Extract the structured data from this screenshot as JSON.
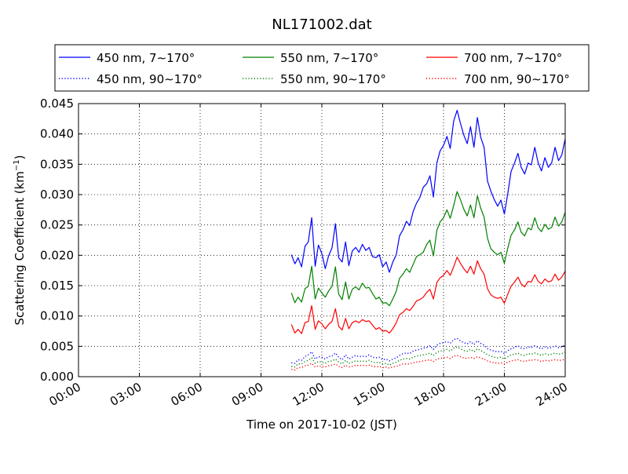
{
  "chart_data": {
    "type": "line",
    "title": "NL171002.dat",
    "xlabel": "Time on 2017-10-02 (JST)",
    "ylabel_main": "Scattering Coefficient (km",
    "ylabel_sup": "−1",
    "ylabel_close": ")",
    "xlim": [
      0,
      24
    ],
    "ylim": [
      0,
      0.045
    ],
    "grid": true,
    "legend_position": "top",
    "x_ticks": [
      {
        "value": 0,
        "label": "00:00"
      },
      {
        "value": 3,
        "label": "03:00"
      },
      {
        "value": 6,
        "label": "06:00"
      },
      {
        "value": 9,
        "label": "09:00"
      },
      {
        "value": 12,
        "label": "12:00"
      },
      {
        "value": 15,
        "label": "15:00"
      },
      {
        "value": 18,
        "label": "18:00"
      },
      {
        "value": 21,
        "label": "21:00"
      },
      {
        "value": 24,
        "label": "24:00"
      }
    ],
    "y_ticks": [
      {
        "value": 0,
        "label": "0.000"
      },
      {
        "value": 0.005,
        "label": "0.005"
      },
      {
        "value": 0.01,
        "label": "0.010"
      },
      {
        "value": 0.015,
        "label": "0.015"
      },
      {
        "value": 0.02,
        "label": "0.020"
      },
      {
        "value": 0.025,
        "label": "0.025"
      },
      {
        "value": 0.03,
        "label": "0.030"
      },
      {
        "value": 0.035,
        "label": "0.035"
      },
      {
        "value": 0.04,
        "label": "0.040"
      },
      {
        "value": 0.045,
        "label": "0.045"
      }
    ],
    "x": [
      10.5,
      10.67,
      10.83,
      11.0,
      11.17,
      11.33,
      11.5,
      11.67,
      11.83,
      12.0,
      12.17,
      12.33,
      12.5,
      12.67,
      12.83,
      13.0,
      13.17,
      13.33,
      13.5,
      13.67,
      13.83,
      14.0,
      14.17,
      14.33,
      14.5,
      14.67,
      14.83,
      15.0,
      15.17,
      15.33,
      15.5,
      15.67,
      15.83,
      16.0,
      16.17,
      16.33,
      16.5,
      16.67,
      16.83,
      17.0,
      17.17,
      17.33,
      17.5,
      17.67,
      17.83,
      18.0,
      18.17,
      18.33,
      18.5,
      18.67,
      18.83,
      19.0,
      19.17,
      19.33,
      19.5,
      19.67,
      19.83,
      20.0,
      20.17,
      20.33,
      20.5,
      20.67,
      20.83,
      21.0,
      21.17,
      21.33,
      21.5,
      21.67,
      21.83,
      22.0,
      22.17,
      22.33,
      22.5,
      22.67,
      22.83,
      23.0,
      23.17,
      23.33,
      23.5,
      23.67,
      23.83,
      24.0
    ],
    "series": [
      {
        "name": "450 nm, 7∼170°",
        "color": "#0000ff",
        "style": "solid",
        "values": [
          0.0201,
          0.0186,
          0.0196,
          0.0181,
          0.0215,
          0.0222,
          0.0262,
          0.0182,
          0.0217,
          0.0203,
          0.0178,
          0.0199,
          0.0212,
          0.0252,
          0.0196,
          0.0189,
          0.0222,
          0.0183,
          0.0207,
          0.0213,
          0.0205,
          0.0218,
          0.0208,
          0.0213,
          0.0198,
          0.0196,
          0.0201,
          0.0181,
          0.0189,
          0.0172,
          0.0189,
          0.0201,
          0.0232,
          0.0242,
          0.0256,
          0.0249,
          0.0272,
          0.0286,
          0.0295,
          0.0312,
          0.0318,
          0.0331,
          0.0296,
          0.0352,
          0.0372,
          0.0381,
          0.0396,
          0.0376,
          0.0421,
          0.0439,
          0.0418,
          0.0398,
          0.0384,
          0.0412,
          0.0378,
          0.0427,
          0.0395,
          0.0378,
          0.0322,
          0.0306,
          0.0292,
          0.0281,
          0.0291,
          0.0268,
          0.0302,
          0.0338,
          0.0352,
          0.0368,
          0.0345,
          0.0334,
          0.0352,
          0.0349,
          0.0378,
          0.0352,
          0.0339,
          0.0361,
          0.0345,
          0.0352,
          0.0378,
          0.0356,
          0.0365,
          0.0392
        ]
      },
      {
        "name": "550 nm, 7∼170°",
        "color": "#008000",
        "style": "solid",
        "values": [
          0.0138,
          0.0122,
          0.0131,
          0.0123,
          0.0145,
          0.0149,
          0.0182,
          0.0128,
          0.0146,
          0.0138,
          0.0131,
          0.0141,
          0.0149,
          0.0181,
          0.0136,
          0.0127,
          0.0156,
          0.0128,
          0.0144,
          0.0148,
          0.0143,
          0.0154,
          0.0146,
          0.0147,
          0.0137,
          0.0128,
          0.0131,
          0.0121,
          0.0122,
          0.0117,
          0.0128,
          0.0141,
          0.0162,
          0.0169,
          0.0178,
          0.0172,
          0.0185,
          0.0198,
          0.0201,
          0.0205,
          0.0218,
          0.0225,
          0.0199,
          0.0241,
          0.0255,
          0.0262,
          0.0275,
          0.0261,
          0.0282,
          0.0305,
          0.0292,
          0.0276,
          0.0265,
          0.0283,
          0.0262,
          0.0298,
          0.0278,
          0.0263,
          0.0228,
          0.0211,
          0.0205,
          0.0201,
          0.0205,
          0.0187,
          0.0212,
          0.0233,
          0.0242,
          0.0255,
          0.0238,
          0.0232,
          0.0245,
          0.0242,
          0.0262,
          0.0245,
          0.0239,
          0.0251,
          0.0243,
          0.0246,
          0.0263,
          0.0248,
          0.0255,
          0.0271
        ]
      },
      {
        "name": "700 nm, 7∼170°",
        "color": "#ff0000",
        "style": "solid",
        "values": [
          0.0086,
          0.0072,
          0.0078,
          0.0071,
          0.0089,
          0.0091,
          0.0117,
          0.0078,
          0.0092,
          0.0087,
          0.0079,
          0.0086,
          0.0091,
          0.0112,
          0.0083,
          0.0077,
          0.0096,
          0.0079,
          0.0089,
          0.0092,
          0.0089,
          0.0094,
          0.0091,
          0.0092,
          0.0085,
          0.0078,
          0.0081,
          0.0075,
          0.0076,
          0.0072,
          0.0079,
          0.0089,
          0.0102,
          0.0106,
          0.0112,
          0.0109,
          0.0116,
          0.0125,
          0.0127,
          0.0131,
          0.0139,
          0.0144,
          0.0128,
          0.0155,
          0.0163,
          0.0167,
          0.0175,
          0.0167,
          0.0181,
          0.0197,
          0.0187,
          0.0178,
          0.0171,
          0.0182,
          0.0169,
          0.0191,
          0.0178,
          0.0169,
          0.0145,
          0.0135,
          0.0131,
          0.0129,
          0.0131,
          0.0121,
          0.0136,
          0.0149,
          0.0156,
          0.0164,
          0.0153,
          0.0148,
          0.0157,
          0.0156,
          0.0168,
          0.0157,
          0.0153,
          0.0161,
          0.0156,
          0.0158,
          0.0169,
          0.0159,
          0.0164,
          0.0174
        ]
      },
      {
        "name": "450 nm, 90∼170°",
        "color": "#0000ff",
        "style": "dotted",
        "values": [
          0.0023,
          0.0022,
          0.0028,
          0.0027,
          0.0033,
          0.0036,
          0.0041,
          0.0029,
          0.0033,
          0.0032,
          0.0029,
          0.0033,
          0.0034,
          0.0039,
          0.0032,
          0.0028,
          0.0036,
          0.0029,
          0.0032,
          0.0035,
          0.0033,
          0.0034,
          0.0033,
          0.0036,
          0.0032,
          0.0031,
          0.0032,
          0.0028,
          0.0029,
          0.0026,
          0.0029,
          0.0031,
          0.0035,
          0.0038,
          0.0039,
          0.0038,
          0.0042,
          0.0044,
          0.0045,
          0.0047,
          0.0048,
          0.0051,
          0.0045,
          0.0052,
          0.0055,
          0.0056,
          0.0058,
          0.0055,
          0.0061,
          0.0063,
          0.0059,
          0.0056,
          0.0054,
          0.0058,
          0.0053,
          0.0059,
          0.0055,
          0.0052,
          0.0046,
          0.0044,
          0.0042,
          0.0041,
          0.0042,
          0.0038,
          0.0043,
          0.0046,
          0.0048,
          0.0051,
          0.0047,
          0.0046,
          0.0049,
          0.0048,
          0.0051,
          0.0048,
          0.0046,
          0.0049,
          0.0047,
          0.0048,
          0.0051,
          0.0048,
          0.0049,
          0.0052
        ]
      },
      {
        "name": "550 nm, 90∼170°",
        "color": "#008000",
        "style": "dotted",
        "values": [
          0.0017,
          0.0016,
          0.0021,
          0.0021,
          0.0025,
          0.0027,
          0.0031,
          0.0022,
          0.0025,
          0.0024,
          0.0022,
          0.0025,
          0.0026,
          0.0029,
          0.0024,
          0.0021,
          0.0027,
          0.0022,
          0.0024,
          0.0026,
          0.0025,
          0.0026,
          0.0025,
          0.0027,
          0.0024,
          0.0023,
          0.0024,
          0.0021,
          0.0022,
          0.0019,
          0.0022,
          0.0024,
          0.0027,
          0.0029,
          0.003,
          0.0029,
          0.0032,
          0.0034,
          0.0035,
          0.0036,
          0.0037,
          0.0039,
          0.0035,
          0.004,
          0.0042,
          0.0043,
          0.0045,
          0.0042,
          0.0047,
          0.0049,
          0.0046,
          0.0043,
          0.0042,
          0.0045,
          0.0041,
          0.0046,
          0.0043,
          0.004,
          0.0036,
          0.0034,
          0.0032,
          0.0031,
          0.0032,
          0.0029,
          0.0033,
          0.0036,
          0.0037,
          0.0039,
          0.0036,
          0.0035,
          0.0038,
          0.0037,
          0.0039,
          0.0037,
          0.0035,
          0.0038,
          0.0036,
          0.0037,
          0.0039,
          0.0037,
          0.0038,
          0.004
        ]
      },
      {
        "name": "700 nm, 90∼170°",
        "color": "#ff0000",
        "style": "dotted",
        "values": [
          0.0012,
          0.0011,
          0.0015,
          0.0015,
          0.0018,
          0.0019,
          0.0022,
          0.0016,
          0.0018,
          0.0017,
          0.0016,
          0.0018,
          0.0019,
          0.0021,
          0.0017,
          0.0015,
          0.0019,
          0.0016,
          0.0017,
          0.0019,
          0.0018,
          0.0019,
          0.0018,
          0.0019,
          0.0017,
          0.0016,
          0.0017,
          0.0015,
          0.0016,
          0.0014,
          0.0016,
          0.0017,
          0.0019,
          0.0021,
          0.0021,
          0.0021,
          0.0023,
          0.0024,
          0.0025,
          0.0026,
          0.0027,
          0.0028,
          0.0025,
          0.0029,
          0.003,
          0.0031,
          0.0032,
          0.003,
          0.0034,
          0.0035,
          0.0033,
          0.0031,
          0.003,
          0.0032,
          0.003,
          0.0033,
          0.0031,
          0.0029,
          0.0026,
          0.0024,
          0.0023,
          0.0022,
          0.0023,
          0.0021,
          0.0024,
          0.0026,
          0.0027,
          0.0028,
          0.0026,
          0.0025,
          0.0027,
          0.0027,
          0.0028,
          0.0027,
          0.0025,
          0.0027,
          0.0026,
          0.0027,
          0.0028,
          0.0027,
          0.0027,
          0.0029
        ]
      }
    ],
    "legend_order": [
      0,
      1,
      2,
      3,
      4,
      5
    ]
  }
}
